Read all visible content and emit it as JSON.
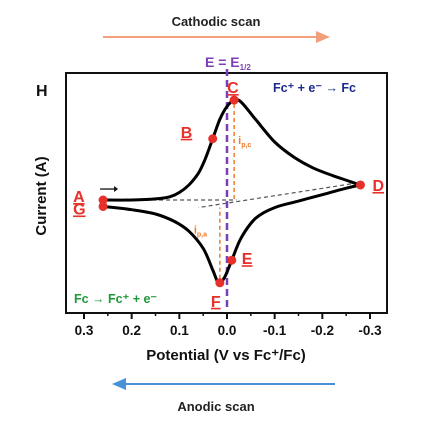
{
  "chart_data": {
    "type": "line",
    "panel_label": "H",
    "xlabel": "Potential (V vs Fc⁺/Fc)",
    "ylabel": "Current (A)",
    "x_axis_reversed": true,
    "xlim": [
      0.3,
      -0.3
    ],
    "xticks": [
      {
        "value": 0.3,
        "label": "0.3"
      },
      {
        "value": 0.2,
        "label": "0.2"
      },
      {
        "value": 0.1,
        "label": "0.1"
      },
      {
        "value": 0.0,
        "label": "0.0"
      },
      {
        "value": -0.1,
        "label": "-0.1"
      },
      {
        "value": -0.2,
        "label": "-0.2"
      },
      {
        "value": -0.3,
        "label": "-0.3"
      }
    ],
    "ylim": [
      -1.0,
      1.0
    ],
    "y_tick_labels_shown": false,
    "grid": false,
    "annotations": {
      "cathodic_scan": "Cathodic scan",
      "anodic_scan": "Anodic scan",
      "e_half_pre": "E = E",
      "e_half_sub": "1/2",
      "reduction_reaction": "Fc⁺ + e⁻ → Fc",
      "oxidation_reaction": "Fc → Fc⁺ + e⁻",
      "ipc_main": "i",
      "ipc_sub": "p,c",
      "ipa_main": "i",
      "ipa_sub": "p,a"
    },
    "e_half_x": 0.0,
    "series": [
      {
        "values_description_only_for_drawing": false,
        "x": [
          0.26,
          0.2,
          0.15,
          0.12,
          0.1,
          0.08,
          0.06,
          0.045,
          0.03,
          0.015,
          0.0,
          -0.015,
          -0.03,
          -0.06,
          -0.1,
          -0.14,
          -0.18,
          -0.22,
          -0.26,
          -0.28
        ],
        "y": [
          -0.07,
          -0.07,
          -0.06,
          -0.04,
          0.0,
          0.07,
          0.18,
          0.32,
          0.5,
          0.68,
          0.8,
          0.86,
          0.84,
          0.68,
          0.47,
          0.33,
          0.23,
          0.16,
          0.1,
          0.07
        ]
      },
      {
        "x": [
          -0.28,
          -0.25,
          -0.2,
          -0.15,
          -0.1,
          -0.06,
          -0.03,
          -0.01,
          0.005,
          0.015,
          0.02,
          0.03,
          0.05,
          0.08,
          0.11,
          0.15,
          0.2,
          0.26
        ],
        "y": [
          0.07,
          0.04,
          -0.02,
          -0.08,
          -0.14,
          -0.24,
          -0.42,
          -0.63,
          -0.79,
          -0.84,
          -0.83,
          -0.72,
          -0.52,
          -0.36,
          -0.27,
          -0.2,
          -0.16,
          -0.13
        ]
      }
    ],
    "points": [
      {
        "label": "A",
        "x": 0.26,
        "y": -0.07
      },
      {
        "label": "B",
        "x": 0.03,
        "y": 0.5
      },
      {
        "label": "C",
        "x": -0.015,
        "y": 0.86
      },
      {
        "label": "D",
        "x": -0.28,
        "y": 0.07
      },
      {
        "label": "E",
        "x": -0.01,
        "y": -0.63
      },
      {
        "label": "F",
        "x": 0.015,
        "y": -0.84
      },
      {
        "label": "G",
        "x": 0.26,
        "y": -0.13
      }
    ],
    "colors": {
      "curve": "#000000",
      "point": "#e8302a",
      "point_label": "#e8302a",
      "e_half_line": "#7b3fb5",
      "e_half_text": "#7b3fb5",
      "peak_current": "#f07c28",
      "cathodic_arrow": "#f2a07b",
      "anodic_arrow": "#4a90d9",
      "reduction_text_blue": "#1c2a8c",
      "reduction_text_green": "#1f9a3a",
      "oxidation_text_green": "#1f9a3a",
      "baseline_dash": "#555555"
    }
  }
}
